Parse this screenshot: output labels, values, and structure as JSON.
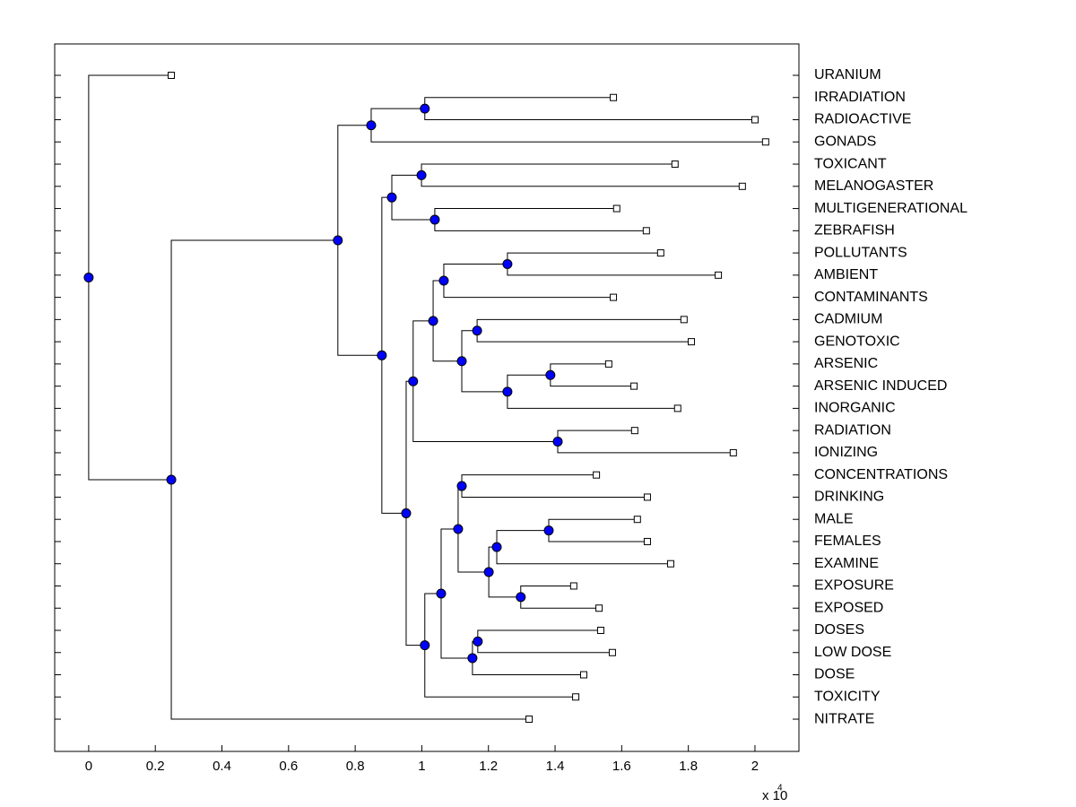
{
  "chart_data": {
    "type": "dendrogram",
    "xlim": [
      -0.102,
      2.132
    ],
    "xticks": [
      0,
      0.2,
      0.4,
      0.6,
      0.8,
      1,
      1.2,
      1.4,
      1.6,
      1.8,
      2
    ],
    "x_scale_label": "x 10",
    "x_scale_exponent": "4",
    "node_color": "#0000ff",
    "leaf_color": "#ffffff",
    "line_color": "#000000",
    "tree": {
      "x": 0,
      "children": [
        {
          "label": "URANIUM",
          "x": 0.248
        },
        {
          "x": 0.248,
          "children": [
            {
              "x": 0.748,
              "children": [
                {
                  "x": 0.848,
                  "children": [
                    {
                      "x": 1.009,
                      "children": [
                        {
                          "label": "IRRADIATION",
                          "x": 1.575
                        },
                        {
                          "label": "RADIOACTIVE",
                          "x": 2.0
                        }
                      ]
                    },
                    {
                      "label": "GONADS",
                      "x": 2.032
                    }
                  ]
                },
                {
                  "x": 0.88,
                  "children": [
                    {
                      "x": 0.91,
                      "children": [
                        {
                          "x": 0.999,
                          "children": [
                            {
                              "label": "TOXICANT",
                              "x": 1.76
                            },
                            {
                              "label": "MELANOGASTER",
                              "x": 1.962
                            }
                          ]
                        },
                        {
                          "x": 1.039,
                          "children": [
                            {
                              "label": "MULTIGENERATIONAL",
                              "x": 1.585
                            },
                            {
                              "label": "ZEBRAFISH",
                              "x": 1.674
                            }
                          ]
                        }
                      ]
                    },
                    {
                      "x": 0.953,
                      "children": [
                        {
                          "x": 0.974,
                          "children": [
                            {
                              "x": 1.034,
                              "children": [
                                {
                                  "x": 1.066,
                                  "children": [
                                    {
                                      "x": 1.257,
                                      "children": [
                                        {
                                          "label": "POLLUTANTS",
                                          "x": 1.717
                                        },
                                        {
                                          "label": "AMBIENT",
                                          "x": 1.89
                                        }
                                      ]
                                    },
                                    {
                                      "label": "CONTAMINANTS",
                                      "x": 1.575
                                    }
                                  ]
                                },
                                {
                                  "x": 1.12,
                                  "children": [
                                    {
                                      "x": 1.166,
                                      "children": [
                                        {
                                          "label": "CADMIUM",
                                          "x": 1.787
                                        },
                                        {
                                          "label": "GENOTOXIC",
                                          "x": 1.809
                                        }
                                      ]
                                    },
                                    {
                                      "x": 1.257,
                                      "children": [
                                        {
                                          "x": 1.386,
                                          "children": [
                                            {
                                              "label": "ARSENIC",
                                              "x": 1.561
                                            },
                                            {
                                              "label": "ARSENIC INDUCED",
                                              "x": 1.637
                                            }
                                          ]
                                        },
                                        {
                                          "label": "INORGANIC",
                                          "x": 1.768
                                        }
                                      ]
                                    }
                                  ]
                                }
                              ]
                            },
                            {
                              "x": 1.408,
                              "children": [
                                {
                                  "label": "RADIATION",
                                  "x": 1.639
                                },
                                {
                                  "label": "IONIZING",
                                  "x": 1.935
                                }
                              ]
                            }
                          ]
                        },
                        {
                          "x": 1.009,
                          "children": [
                            {
                              "x": 1.058,
                              "children": [
                                {
                                  "x": 1.109,
                                  "children": [
                                    {
                                      "x": 1.12,
                                      "children": [
                                        {
                                          "label": "CONCENTRATIONS",
                                          "x": 1.524
                                        },
                                        {
                                          "label": "DRINKING",
                                          "x": 1.677
                                        }
                                      ]
                                    },
                                    {
                                      "x": 1.201,
                                      "children": [
                                        {
                                          "x": 1.225,
                                          "children": [
                                            {
                                              "x": 1.381,
                                              "children": [
                                                {
                                                  "label": "MALE",
                                                  "x": 1.647
                                                },
                                                {
                                                  "label": "FEMALES",
                                                  "x": 1.677
                                                }
                                              ]
                                            },
                                            {
                                              "label": "EXAMINE",
                                              "x": 1.747
                                            }
                                          ]
                                        },
                                        {
                                          "x": 1.297,
                                          "children": [
                                            {
                                              "label": "EXPOSURE",
                                              "x": 1.456
                                            },
                                            {
                                              "label": "EXPOSED",
                                              "x": 1.532
                                            }
                                          ]
                                        }
                                      ]
                                    }
                                  ]
                                },
                                {
                                  "x": 1.152,
                                  "children": [
                                    {
                                      "x": 1.168,
                                      "children": [
                                        {
                                          "label": "DOSES",
                                          "x": 1.537
                                        },
                                        {
                                          "label": "LOW DOSE",
                                          "x": 1.572
                                        }
                                      ]
                                    },
                                    {
                                      "label": "DOSE",
                                      "x": 1.486
                                    }
                                  ]
                                }
                              ]
                            },
                            {
                              "label": "TOXICITY",
                              "x": 1.462
                            }
                          ]
                        }
                      ]
                    }
                  ]
                }
              ]
            },
            {
              "label": "NITRATE",
              "x": 1.322
            }
          ]
        }
      ]
    }
  }
}
